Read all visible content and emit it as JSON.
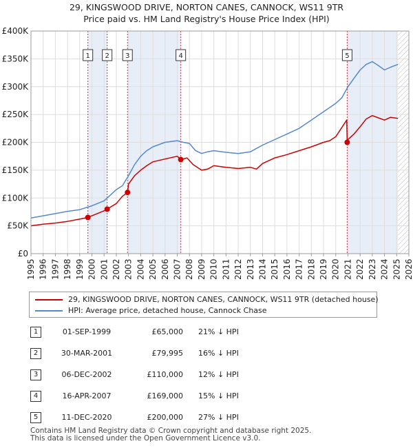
{
  "title_line1": "29, KINGSWOOD DRIVE, NORTON CANES, CANNOCK, WS11 9TR",
  "title_line2": "Price paid vs. HM Land Registry's House Price Index (HPI)",
  "colors": {
    "price": "#cc0000",
    "hpi": "#5588cc",
    "shade": "#e8eef8",
    "grid": "#dddddd"
  },
  "chart_data": {
    "type": "line",
    "xlim": [
      1995,
      2026
    ],
    "ylim": [
      0,
      400000
    ],
    "ytick_labels": [
      "£0",
      "£50K",
      "£100K",
      "£150K",
      "£200K",
      "£250K",
      "£300K",
      "£350K",
      "£400K"
    ],
    "yticks": [
      0,
      50000,
      100000,
      150000,
      200000,
      250000,
      300000,
      350000,
      400000
    ],
    "xtick_labels": [
      "1995",
      "1996",
      "1997",
      "1998",
      "1999",
      "2000",
      "2001",
      "2002",
      "2003",
      "2004",
      "2005",
      "2006",
      "2007",
      "2008",
      "2009",
      "2010",
      "2011",
      "2012",
      "2013",
      "2014",
      "2015",
      "2016",
      "2017",
      "2018",
      "2019",
      "2020",
      "2021",
      "2022",
      "2023",
      "2024",
      "2025",
      "2026"
    ],
    "shaded_periods": [
      [
        1999.67,
        2001.25
      ],
      [
        2002.92,
        2007.29
      ],
      [
        2020.94,
        2025.1
      ]
    ],
    "hatch_after": 2025.1,
    "series": [
      {
        "name": "29, KINGSWOOD DRIVE, NORTON CANES, CANNOCK, WS11 9TR (detached house)",
        "color": "#cc0000",
        "x": [
          1995,
          1996,
          1997,
          1998,
          1999,
          1999.67,
          2000,
          2001,
          2001.25,
          2002,
          2002.5,
          2002.92,
          2003,
          2003.5,
          2004,
          2004.5,
          2005,
          2006,
          2007,
          2007.29,
          2007.8,
          2008.3,
          2009,
          2009.5,
          2010,
          2011,
          2012,
          2013,
          2013.5,
          2014,
          2015,
          2016,
          2017,
          2018,
          2019,
          2019.5,
          2020,
          2020.9,
          2020.94,
          2021,
          2021.5,
          2022,
          2022.5,
          2023,
          2023.5,
          2024,
          2024.5,
          2025.1
        ],
        "values": [
          50000,
          53000,
          55000,
          58000,
          62000,
          65000,
          68000,
          77000,
          79995,
          90000,
          103000,
          110000,
          125000,
          140000,
          150000,
          158000,
          165000,
          170000,
          175000,
          169000,
          172000,
          160000,
          150000,
          152000,
          158000,
          155000,
          153000,
          155000,
          152000,
          162000,
          172000,
          178000,
          185000,
          192000,
          200000,
          203000,
          210000,
          240000,
          200000,
          205000,
          215000,
          228000,
          242000,
          248000,
          244000,
          240000,
          245000,
          243000
        ]
      },
      {
        "name": "HPI: Average price, detached house, Cannock Chase",
        "color": "#5588cc",
        "x": [
          1995,
          1996,
          1997,
          1998,
          1999,
          2000,
          2001,
          2002,
          2002.5,
          2003,
          2003.5,
          2004,
          2004.5,
          2005,
          2006,
          2007,
          2007.5,
          2008,
          2008.5,
          2009,
          2009.5,
          2010,
          2011,
          2012,
          2013,
          2014,
          2015,
          2016,
          2017,
          2018,
          2019,
          2020,
          2020.5,
          2021,
          2021.5,
          2022,
          2022.5,
          2023,
          2023.5,
          2024,
          2024.5,
          2025.1
        ],
        "values": [
          64000,
          68000,
          72000,
          76000,
          79000,
          86000,
          95000,
          115000,
          122000,
          140000,
          160000,
          175000,
          185000,
          192000,
          200000,
          203000,
          200000,
          198000,
          185000,
          180000,
          183000,
          185000,
          182000,
          180000,
          183000,
          195000,
          205000,
          215000,
          225000,
          240000,
          255000,
          270000,
          280000,
          300000,
          315000,
          330000,
          340000,
          345000,
          338000,
          330000,
          335000,
          340000
        ]
      }
    ],
    "sales": [
      {
        "num": "1",
        "x": 1999.67,
        "value": 65000
      },
      {
        "num": "2",
        "x": 2001.25,
        "value": 79995
      },
      {
        "num": "3",
        "x": 2002.92,
        "value": 110000
      },
      {
        "num": "4",
        "x": 2007.29,
        "value": 169000
      },
      {
        "num": "5",
        "x": 2020.94,
        "value": 200000
      }
    ]
  },
  "legend": {
    "price_label": "29, KINGSWOOD DRIVE, NORTON CANES, CANNOCK, WS11 9TR (detached house)",
    "hpi_label": "HPI: Average price, detached house, Cannock Chase"
  },
  "sales_table": [
    {
      "num": "1",
      "date": "01-SEP-1999",
      "price": "£65,000",
      "hpi": "21% ↓ HPI"
    },
    {
      "num": "2",
      "date": "30-MAR-2001",
      "price": "£79,995",
      "hpi": "16% ↓ HPI"
    },
    {
      "num": "3",
      "date": "06-DEC-2002",
      "price": "£110,000",
      "hpi": "12% ↓ HPI"
    },
    {
      "num": "4",
      "date": "16-APR-2007",
      "price": "£169,000",
      "hpi": "15% ↓ HPI"
    },
    {
      "num": "5",
      "date": "11-DEC-2020",
      "price": "£200,000",
      "hpi": "27% ↓ HPI"
    }
  ],
  "footer": {
    "line1": "Contains HM Land Registry data © Crown copyright and database right 2025.",
    "line2": "This data is licensed under the Open Government Licence v3.0."
  }
}
